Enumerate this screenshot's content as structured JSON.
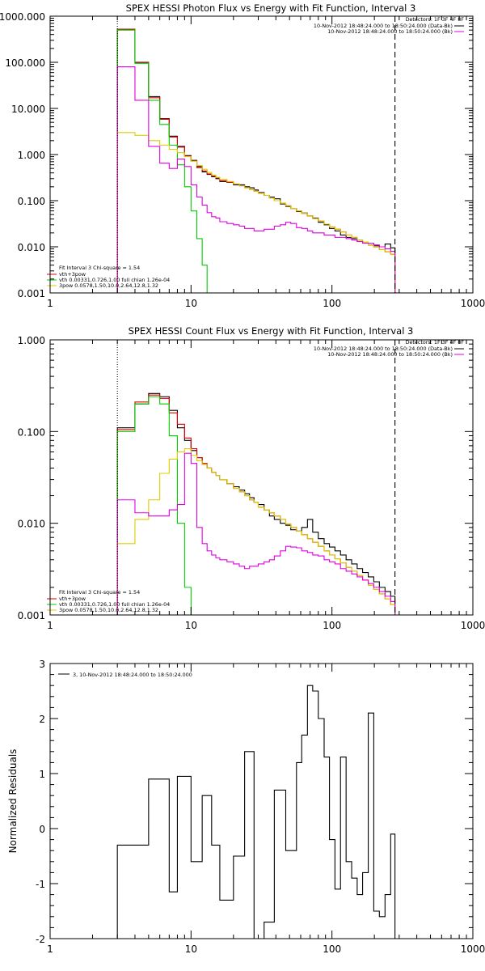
{
  "chart_data": [
    {
      "type": "line",
      "step": true,
      "title": "SPEX HESSI Photon Flux vs Energy with Fit Function, Interval 3",
      "xscale": "log",
      "yscale": "log",
      "xlim": [
        1,
        1000
      ],
      "ylim": [
        0.001,
        1000
      ],
      "x_ticks": [
        1,
        10,
        100,
        1000
      ],
      "x_tick_labels": [
        "1",
        "10",
        "100",
        "1000"
      ],
      "y_ticks": [
        0.001,
        0.01,
        0.1,
        1,
        10,
        100,
        1000
      ],
      "y_tick_labels": [
        "0.001",
        "0.010",
        "0.100",
        "1.000",
        "10.000",
        "100.000",
        "1000.000"
      ],
      "vlines": [
        3,
        280
      ],
      "header_legend": {
        "detectors": "Detectors: 1F 3F 4F 8F",
        "entries": [
          {
            "label": "10-Nov-2012 18:48:24.000 to 18:50:24.000 (Data-Bk)",
            "color": "#000000"
          },
          {
            "label": "10-Nov-2012 18:48:24.000 to 18:50:24.000 (Bk)",
            "color": "#e000e0"
          }
        ]
      },
      "fit_legend": {
        "title": "Fit Interval 3   Chi-square = 1.54",
        "entries": [
          {
            "label": "vth+3pow",
            "color": "#e00000"
          },
          {
            "label": "vth 0.00331,0.726,1.00  full chian 1.26e-04",
            "color": "#00cc00"
          },
          {
            "label": "3pow 0.0578,1.50,10.0,2.64,12.8,1.32",
            "color": "#ddcc00"
          }
        ]
      },
      "x_edges": [
        3,
        4,
        5,
        6,
        7,
        8,
        9,
        10,
        11,
        12,
        13,
        14,
        15,
        16,
        18,
        20,
        22,
        24,
        26,
        28,
        30,
        33,
        36,
        39,
        43,
        47,
        51,
        56,
        61,
        67,
        73,
        80,
        88,
        96,
        105,
        115,
        126,
        138,
        151,
        165,
        181,
        198,
        217,
        238,
        261,
        280
      ],
      "series": [
        {
          "name": "Data-Bk",
          "color": "#000000",
          "values": [
            520,
            100,
            18,
            6,
            2.5,
            1.5,
            0.95,
            0.75,
            0.55,
            0.42,
            0.37,
            0.33,
            0.3,
            0.26,
            0.25,
            0.22,
            0.22,
            0.2,
            0.19,
            0.17,
            0.15,
            0.13,
            0.12,
            0.11,
            0.085,
            0.075,
            0.068,
            0.058,
            0.054,
            0.047,
            0.042,
            0.034,
            0.03,
            0.025,
            0.022,
            0.018,
            0.016,
            0.015,
            0.013,
            0.012,
            0.011,
            0.0105,
            0.01,
            0.0115,
            0.0095
          ]
        },
        {
          "name": "vth+3pow",
          "color": "#e00000",
          "values": [
            520,
            98,
            17,
            5.8,
            2.4,
            1.45,
            0.92,
            0.72,
            0.52,
            0.44,
            0.38,
            0.34,
            0.31,
            0.27,
            0.25,
            0.23,
            0.21,
            0.19,
            0.175,
            0.16,
            0.145,
            0.13,
            0.115,
            0.1,
            0.088,
            0.078,
            0.068,
            0.06,
            0.053,
            0.047,
            0.041,
            0.036,
            0.031,
            0.027,
            0.024,
            0.021,
            0.018,
            0.016,
            0.014,
            0.0125,
            0.011,
            0.0098,
            0.0087,
            0.0078,
            0.0069
          ]
        },
        {
          "name": "vth",
          "color": "#00cc00",
          "values": [
            500,
            95,
            15,
            4.5,
            1.6,
            0.6,
            0.2,
            0.06,
            0.015,
            0.004,
            0.0008
          ]
        },
        {
          "name": "3pow",
          "color": "#ddcc00",
          "values": [
            3.0,
            2.6,
            2.0,
            1.6,
            1.3,
            1.1,
            0.9,
            0.72,
            0.58,
            0.48,
            0.41,
            0.36,
            0.32,
            0.29,
            0.26,
            0.23,
            0.21,
            0.19,
            0.175,
            0.16,
            0.145,
            0.13,
            0.115,
            0.1,
            0.088,
            0.078,
            0.068,
            0.06,
            0.053,
            0.047,
            0.041,
            0.036,
            0.031,
            0.027,
            0.024,
            0.021,
            0.018,
            0.016,
            0.014,
            0.0125,
            0.011,
            0.0098,
            0.0087,
            0.0078,
            0.0069
          ]
        },
        {
          "name": "Bk",
          "color": "#e000e0",
          "values": [
            80,
            15,
            1.5,
            0.65,
            0.5,
            0.8,
            0.55,
            0.22,
            0.12,
            0.08,
            0.055,
            0.045,
            0.042,
            0.035,
            0.032,
            0.03,
            0.028,
            0.025,
            0.025,
            0.022,
            0.022,
            0.024,
            0.024,
            0.028,
            0.03,
            0.034,
            0.032,
            0.026,
            0.025,
            0.022,
            0.02,
            0.02,
            0.018,
            0.018,
            0.016,
            0.016,
            0.015,
            0.014,
            0.013,
            0.012,
            0.012,
            0.011,
            0.01,
            0.009,
            0.008
          ]
        }
      ]
    },
    {
      "type": "line",
      "step": true,
      "title": "SPEX HESSI Count Flux vs Energy with Fit Function, Interval 3",
      "xscale": "log",
      "yscale": "log",
      "xlim": [
        1,
        1000
      ],
      "ylim": [
        0.001,
        1
      ],
      "x_ticks": [
        1,
        10,
        100,
        1000
      ],
      "x_tick_labels": [
        "1",
        "10",
        "100",
        "1000"
      ],
      "y_ticks": [
        0.001,
        0.01,
        0.1,
        1
      ],
      "y_tick_labels": [
        "0.001",
        "0.010",
        "0.100",
        "1.000"
      ],
      "vlines": [
        3,
        280
      ],
      "header_legend": {
        "detectors": "Detectors: 1F 3F 4F 8F",
        "entries": [
          {
            "label": "10-Nov-2012 18:48:24.000 to 18:50:24.000 (Data-Bk)",
            "color": "#000000"
          },
          {
            "label": "10-Nov-2012 18:48:24.000 to 18:50:24.000 (Bk)",
            "color": "#e000e0"
          }
        ]
      },
      "fit_legend": {
        "title": "Fit Interval 3   Chi-square = 1.54",
        "entries": [
          {
            "label": "vth+3pow",
            "color": "#e00000"
          },
          {
            "label": "vth 0.00331,0.726,1.00  full chian 1.26e-04",
            "color": "#00cc00"
          },
          {
            "label": "3pow 0.0578,1.50,10.0,2.64,12.8,1.32",
            "color": "#ddcc00"
          }
        ]
      },
      "x_edges": [
        3,
        4,
        5,
        6,
        7,
        8,
        9,
        10,
        11,
        12,
        13,
        14,
        15,
        16,
        18,
        20,
        22,
        24,
        26,
        28,
        30,
        33,
        36,
        39,
        43,
        47,
        51,
        56,
        61,
        67,
        73,
        80,
        88,
        96,
        105,
        115,
        126,
        138,
        151,
        165,
        181,
        198,
        217,
        238,
        261,
        280
      ],
      "series": [
        {
          "name": "Data-Bk",
          "color": "#000000",
          "values": [
            0.11,
            0.2,
            0.26,
            0.24,
            0.17,
            0.11,
            0.08,
            0.062,
            0.052,
            0.044,
            0.04,
            0.036,
            0.033,
            0.03,
            0.027,
            0.025,
            0.023,
            0.021,
            0.019,
            0.017,
            0.016,
            0.014,
            0.012,
            0.011,
            0.01,
            0.0095,
            0.0085,
            0.0082,
            0.009,
            0.011,
            0.008,
            0.0068,
            0.006,
            0.0055,
            0.005,
            0.0045,
            0.004,
            0.0036,
            0.0032,
            0.0029,
            0.0026,
            0.0023,
            0.002,
            0.0018,
            0.0016
          ]
        },
        {
          "name": "vth+3pow",
          "color": "#e00000",
          "values": [
            0.105,
            0.21,
            0.25,
            0.23,
            0.16,
            0.12,
            0.085,
            0.065,
            0.052,
            0.045,
            0.04,
            0.036,
            0.033,
            0.03,
            0.027,
            0.024,
            0.022,
            0.02,
            0.018,
            0.017,
            0.015,
            0.014,
            0.013,
            0.012,
            0.011,
            0.0098,
            0.009,
            0.0082,
            0.0075,
            0.0068,
            0.0062,
            0.0056,
            0.005,
            0.0045,
            0.0041,
            0.0037,
            0.0033,
            0.003,
            0.0027,
            0.0024,
            0.0021,
            0.0019,
            0.0017,
            0.0015,
            0.0013
          ]
        },
        {
          "name": "vth",
          "color": "#00cc00",
          "values": [
            0.1,
            0.2,
            0.24,
            0.2,
            0.09,
            0.01,
            0.002,
            0.0004
          ]
        },
        {
          "name": "3pow",
          "color": "#ddcc00",
          "values": [
            0.006,
            0.011,
            0.018,
            0.035,
            0.05,
            0.06,
            0.065,
            0.055,
            0.048,
            0.044,
            0.04,
            0.036,
            0.033,
            0.03,
            0.027,
            0.024,
            0.022,
            0.02,
            0.018,
            0.017,
            0.015,
            0.014,
            0.013,
            0.012,
            0.011,
            0.0098,
            0.009,
            0.0082,
            0.0075,
            0.0068,
            0.0062,
            0.0056,
            0.005,
            0.0045,
            0.0041,
            0.0037,
            0.0033,
            0.003,
            0.0027,
            0.0024,
            0.0021,
            0.0019,
            0.0017,
            0.0015,
            0.0013
          ]
        },
        {
          "name": "Bk",
          "color": "#e000e0",
          "values": [
            0.018,
            0.013,
            0.012,
            0.012,
            0.014,
            0.016,
            0.058,
            0.045,
            0.009,
            0.006,
            0.005,
            0.0045,
            0.0042,
            0.004,
            0.0038,
            0.0036,
            0.0034,
            0.0032,
            0.0034,
            0.0034,
            0.0036,
            0.0038,
            0.004,
            0.0044,
            0.005,
            0.0056,
            0.0055,
            0.0054,
            0.005,
            0.0048,
            0.0045,
            0.0044,
            0.004,
            0.0038,
            0.0036,
            0.0032,
            0.003,
            0.0028,
            0.0026,
            0.0024,
            0.0022,
            0.002,
            0.0018,
            0.0016,
            0.0014
          ]
        }
      ]
    },
    {
      "type": "line",
      "step": true,
      "title": "",
      "ylabel": "Normalized Residuals",
      "xscale": "log",
      "xlim": [
        1,
        1000
      ],
      "ylim": [
        -2,
        3
      ],
      "x_ticks": [
        1,
        10,
        100,
        1000
      ],
      "x_tick_labels": [
        "1",
        "10",
        "100",
        "1000"
      ],
      "y_ticks": [
        -2,
        -1,
        0,
        1,
        2,
        3
      ],
      "y_tick_labels": [
        "-2",
        "-1",
        "0",
        "1",
        "2",
        "3"
      ],
      "legend": {
        "entries": [
          {
            "label": "3, 10-Nov-2012 18:48:24.000 to 18:50:24.000",
            "color": "#000000"
          }
        ]
      },
      "x_edges": [
        3,
        4,
        5,
        6,
        7,
        8,
        9,
        10,
        11,
        12,
        13,
        14,
        15,
        16,
        18,
        20,
        22,
        24,
        26,
        28,
        30,
        33,
        36,
        39,
        43,
        47,
        51,
        56,
        61,
        67,
        73,
        80,
        88,
        96,
        105,
        115,
        126,
        138,
        151,
        165,
        181,
        198,
        217,
        238,
        261,
        280
      ],
      "series": [
        {
          "name": "",
          "color": "#000000",
          "values": [
            -0.3,
            -0.3,
            0.9,
            0.9,
            -1.15,
            0.95,
            0.95,
            -0.6,
            -0.6,
            0.6,
            0.6,
            -0.3,
            -0.3,
            -1.3,
            -1.3,
            -0.5,
            -0.5,
            1.4,
            1.4,
            -2.0,
            -2.0,
            -1.7,
            -1.7,
            0.7,
            0.7,
            -0.4,
            -0.4,
            1.2,
            1.7,
            2.6,
            2.5,
            2.0,
            1.3,
            -0.2,
            -1.1,
            1.3,
            -0.6,
            -0.9,
            -1.2,
            -0.8,
            2.1,
            -1.5,
            -1.6,
            -1.2,
            -0.1
          ]
        }
      ]
    }
  ]
}
